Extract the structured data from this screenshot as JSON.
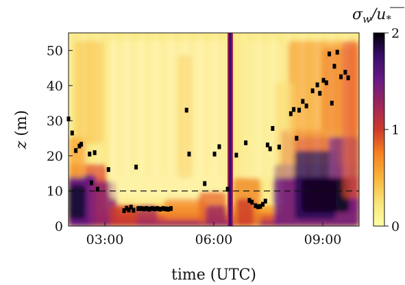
{
  "chart_data": {
    "type": "heatmap",
    "title": "",
    "xlabel": "time (UTC)",
    "ylabel": "z (m)",
    "xlim": [
      2.0,
      10.0
    ],
    "ylim": [
      0,
      55
    ],
    "xticks": [
      3,
      6,
      9
    ],
    "xtick_labels": [
      "03:00",
      "06:00",
      "09:00"
    ],
    "yticks": [
      0,
      10,
      20,
      30,
      40,
      50
    ],
    "ytick_labels": [
      "0",
      "10",
      "20",
      "30",
      "40",
      "50"
    ],
    "colorbar": {
      "label": "σ_w / u_*",
      "range": [
        0,
        2
      ],
      "ticks": [
        0,
        1,
        2
      ],
      "tick_labels": [
        "0",
        "1",
        "2"
      ],
      "colormap": "inferno_r"
    },
    "reference_line": {
      "y": 10,
      "style": "dashed"
    },
    "markers": [
      {
        "x": 2.0,
        "y": 30.5
      },
      {
        "x": 2.1,
        "y": 26.5
      },
      {
        "x": 2.2,
        "y": 21.5
      },
      {
        "x": 2.3,
        "y": 22.8
      },
      {
        "x": 2.35,
        "y": 23.3
      },
      {
        "x": 2.58,
        "y": 20.5
      },
      {
        "x": 2.63,
        "y": 12.3
      },
      {
        "x": 2.72,
        "y": 20.9
      },
      {
        "x": 2.8,
        "y": 10.5
      },
      {
        "x": 3.1,
        "y": 16.1
      },
      {
        "x": 3.53,
        "y": 4.4
      },
      {
        "x": 3.6,
        "y": 5.1
      },
      {
        "x": 3.66,
        "y": 4.6
      },
      {
        "x": 3.72,
        "y": 5.4
      },
      {
        "x": 3.79,
        "y": 4.5
      },
      {
        "x": 3.86,
        "y": 16.8
      },
      {
        "x": 3.92,
        "y": 5.0
      },
      {
        "x": 4.0,
        "y": 5.0
      },
      {
        "x": 4.08,
        "y": 4.9
      },
      {
        "x": 4.15,
        "y": 5.0
      },
      {
        "x": 4.22,
        "y": 4.8
      },
      {
        "x": 4.3,
        "y": 5.0
      },
      {
        "x": 4.38,
        "y": 4.9
      },
      {
        "x": 4.45,
        "y": 5.0
      },
      {
        "x": 4.52,
        "y": 4.8
      },
      {
        "x": 4.6,
        "y": 5.0
      },
      {
        "x": 4.67,
        "y": 4.9
      },
      {
        "x": 4.74,
        "y": 4.8
      },
      {
        "x": 4.82,
        "y": 5.0
      },
      {
        "x": 5.25,
        "y": 33.0
      },
      {
        "x": 5.32,
        "y": 20.5
      },
      {
        "x": 5.75,
        "y": 12.1
      },
      {
        "x": 6.02,
        "y": 20.5
      },
      {
        "x": 6.15,
        "y": 22.6
      },
      {
        "x": 6.38,
        "y": 10.5
      },
      {
        "x": 6.62,
        "y": 20.2
      },
      {
        "x": 6.88,
        "y": 23.7
      },
      {
        "x": 6.98,
        "y": 7.3
      },
      {
        "x": 7.05,
        "y": 6.8
      },
      {
        "x": 7.15,
        "y": 5.8
      },
      {
        "x": 7.22,
        "y": 5.5
      },
      {
        "x": 7.28,
        "y": 5.6
      },
      {
        "x": 7.35,
        "y": 6.2
      },
      {
        "x": 7.42,
        "y": 7.1
      },
      {
        "x": 7.48,
        "y": 23.1
      },
      {
        "x": 7.55,
        "y": 22.0
      },
      {
        "x": 7.62,
        "y": 27.8
      },
      {
        "x": 7.8,
        "y": 22.5
      },
      {
        "x": 8.12,
        "y": 32.0
      },
      {
        "x": 8.2,
        "y": 33.2
      },
      {
        "x": 8.28,
        "y": 25.0
      },
      {
        "x": 8.35,
        "y": 33.0
      },
      {
        "x": 8.45,
        "y": 35.5
      },
      {
        "x": 8.55,
        "y": 34.2
      },
      {
        "x": 8.72,
        "y": 38.5
      },
      {
        "x": 8.85,
        "y": 40.2
      },
      {
        "x": 8.92,
        "y": 37.8
      },
      {
        "x": 9.02,
        "y": 41.5
      },
      {
        "x": 9.1,
        "y": 40.8
      },
      {
        "x": 9.18,
        "y": 49.0
      },
      {
        "x": 9.25,
        "y": 35.0
      },
      {
        "x": 9.32,
        "y": 45.5
      },
      {
        "x": 9.4,
        "y": 49.5
      },
      {
        "x": 9.5,
        "y": 42.5
      },
      {
        "x": 9.62,
        "y": 43.8
      },
      {
        "x": 9.7,
        "y": 42.2
      }
    ]
  }
}
